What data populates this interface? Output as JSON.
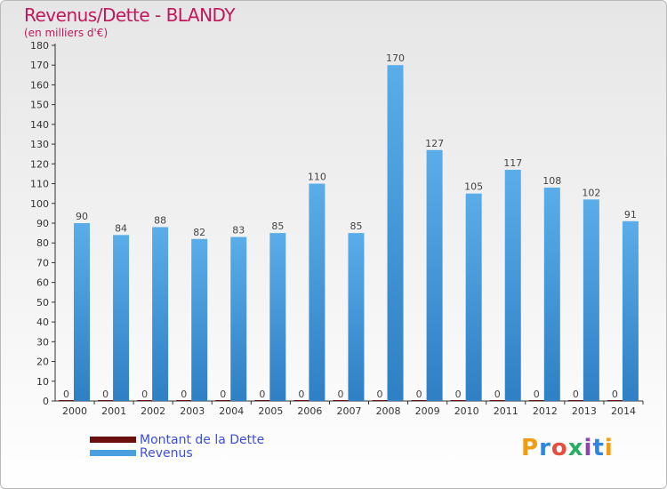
{
  "chart_data": {
    "type": "bar",
    "title": "Revenus/Dette - BLANDY",
    "subtitle": "(en milliers d'€)",
    "xlabel": "",
    "ylabel": "",
    "ylim": [
      0,
      180
    ],
    "ytick_step": 10,
    "categories": [
      "2000",
      "2001",
      "2002",
      "2003",
      "2004",
      "2005",
      "2006",
      "2007",
      "2008",
      "2009",
      "2010",
      "2011",
      "2012",
      "2013",
      "2014"
    ],
    "series": [
      {
        "name": "Montant de la Dette",
        "color": "#6b0f0f",
        "values": [
          0,
          0,
          0,
          0,
          0,
          0,
          0,
          0,
          0,
          0,
          0,
          0,
          0,
          0,
          0
        ]
      },
      {
        "name": "Revenus",
        "color": "#4a9fe0",
        "values": [
          90,
          84,
          88,
          82,
          83,
          85,
          110,
          85,
          170,
          127,
          105,
          117,
          108,
          102,
          91
        ]
      }
    ],
    "grid": false,
    "legend_position": "bottom-left"
  },
  "logo": {
    "text": [
      "P",
      "r",
      "o",
      "x",
      "i",
      "t",
      "i"
    ]
  }
}
